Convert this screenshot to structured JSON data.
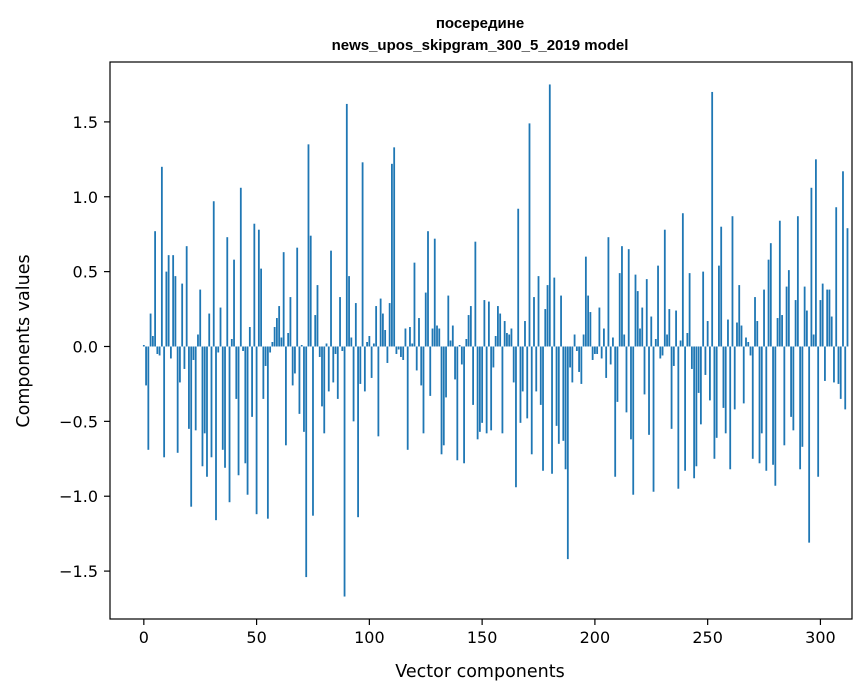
{
  "chart_data": {
    "type": "bar",
    "title": "посередине",
    "subtitle": "news_upos_skipgram_300_5_2019 model",
    "xlabel": "Vector components",
    "ylabel": "Components values",
    "xlim": [
      -15,
      314
    ],
    "ylim": [
      -1.82,
      1.9
    ],
    "xticks": [
      0,
      50,
      100,
      150,
      200,
      250,
      300
    ],
    "yticks": [
      -1.5,
      -1.0,
      -0.5,
      0.0,
      0.5,
      1.0,
      1.5
    ],
    "ytick_labels": [
      "−1.5",
      "−1.0",
      "−0.5",
      "0.0",
      "0.5",
      "1.0",
      "1.5"
    ],
    "bar_color": "#1f77b4",
    "grid": false,
    "values": [
      0.01,
      -0.26,
      -0.69,
      0.22,
      0.07,
      0.77,
      -0.05,
      -0.06,
      1.2,
      -0.74,
      0.5,
      0.61,
      -0.08,
      0.61,
      0.47,
      -0.71,
      -0.24,
      0.42,
      -0.15,
      0.67,
      -0.55,
      -1.07,
      -0.09,
      -0.56,
      0.08,
      0.38,
      -0.8,
      -0.58,
      -0.87,
      0.22,
      -0.74,
      0.97,
      -1.16,
      -0.04,
      0.26,
      -0.69,
      -0.81,
      0.73,
      -1.04,
      0.05,
      0.58,
      -0.35,
      -0.86,
      1.06,
      -0.03,
      -0.78,
      -0.99,
      0.13,
      -0.47,
      0.82,
      -1.12,
      0.78,
      0.52,
      -0.35,
      -0.13,
      -1.15,
      -0.04,
      0.03,
      0.13,
      0.19,
      0.27,
      0.06,
      0.63,
      -0.66,
      0.09,
      0.33,
      -0.26,
      -0.18,
      0.66,
      -0.45,
      0.01,
      -0.57,
      -1.54,
      1.35,
      0.74,
      -1.13,
      0.21,
      0.41,
      -0.07,
      -0.4,
      -0.58,
      0.02,
      -0.3,
      0.64,
      -0.24,
      -0.05,
      -0.35,
      0.33,
      -0.03,
      -1.67,
      1.62,
      0.47,
      0.06,
      -0.5,
      0.29,
      -1.14,
      -0.25,
      1.23,
      -0.3,
      0.03,
      0.07,
      -0.21,
      0.02,
      0.27,
      -0.6,
      0.32,
      0.22,
      0.11,
      -0.11,
      0.29,
      1.22,
      1.33,
      -0.05,
      -0.02,
      -0.07,
      -0.09,
      0.12,
      -0.69,
      0.13,
      0.02,
      0.56,
      -0.16,
      0.19,
      -0.26,
      -0.58,
      0.36,
      0.77,
      -0.33,
      0.12,
      0.72,
      0.14,
      0.12,
      -0.72,
      -0.66,
      -0.34,
      0.34,
      0.04,
      0.14,
      -0.22,
      -0.76,
      0.01,
      -0.12,
      -0.78,
      0.05,
      0.21,
      0.27,
      -0.39,
      0.7,
      -0.62,
      -0.57,
      -0.51,
      0.31,
      -0.58,
      0.3,
      -0.56,
      -0.14,
      0.07,
      0.27,
      0.22,
      -0.58,
      0.17,
      0.09,
      0.08,
      0.12,
      -0.24,
      -0.94,
      0.92,
      -0.51,
      -0.3,
      0.17,
      -0.48,
      1.49,
      -0.72,
      0.33,
      -0.3,
      0.47,
      -0.39,
      -0.83,
      0.25,
      0.41,
      1.75,
      -0.85,
      0.46,
      -0.53,
      -0.65,
      0.34,
      -0.63,
      -0.82,
      -1.42,
      -0.14,
      -0.24,
      0.08,
      -0.03,
      -0.17,
      -0.25,
      0.08,
      0.6,
      0.34,
      0.23,
      -0.09,
      -0.05,
      -0.05,
      0.26,
      -0.08,
      0.12,
      -0.21,
      0.73,
      -0.12,
      0.06,
      -0.87,
      -0.37,
      0.49,
      0.67,
      0.08,
      -0.44,
      0.65,
      -0.62,
      -0.99,
      0.48,
      0.37,
      0.12,
      0.26,
      -0.32,
      0.45,
      -0.59,
      0.2,
      -0.97,
      0.05,
      0.54,
      -0.08,
      -0.06,
      0.78,
      0.08,
      0.25,
      -0.55,
      -0.13,
      0.24,
      -0.95,
      0.04,
      0.89,
      -0.83,
      0.09,
      0.49,
      -0.15,
      -0.88,
      -0.8,
      -0.31,
      -0.52,
      0.5,
      -0.19,
      0.17,
      -0.36,
      1.7,
      -0.75,
      -0.61,
      0.54,
      0.8,
      -0.41,
      -0.58,
      0.18,
      -0.82,
      0.87,
      -0.42,
      0.16,
      0.41,
      0.14,
      -0.38,
      0.06,
      0.03,
      -0.06,
      -0.75,
      0.33,
      0.17,
      -0.78,
      -0.58,
      0.38,
      -0.83,
      0.58,
      0.69,
      -0.79,
      -0.93,
      0.19,
      0.84,
      0.21,
      -0.66,
      0.4,
      0.51,
      -0.47,
      -0.56,
      0.31,
      0.87,
      -0.82,
      -0.67,
      0.4,
      0.24,
      -1.31,
      1.06,
      0.08,
      1.25,
      -0.87,
      0.31,
      0.42,
      -0.23,
      0.38,
      0.38,
      0.2,
      -0.24,
      0.93,
      -0.25,
      -0.35,
      1.17,
      -0.42,
      0.79
    ]
  }
}
